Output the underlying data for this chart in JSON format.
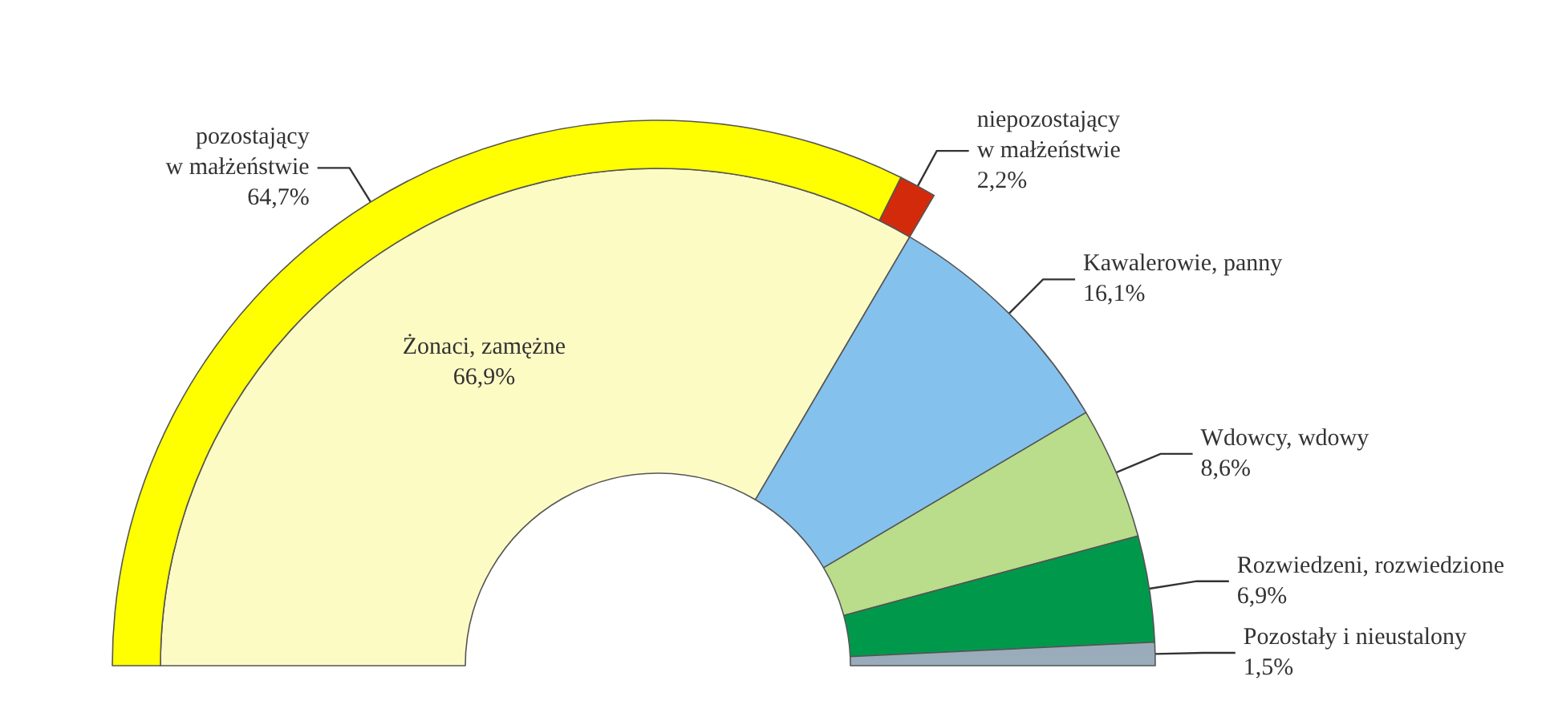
{
  "chart_data": [
    {
      "type": "donut",
      "categories": [
        "Żonaci, zamężne",
        "Kawalerowie, panny",
        "Wdowcy, wdowy",
        "Rozwiedzeni, rozwiedzione",
        "Pozostały i nieustalony"
      ],
      "values": [
        66.9,
        16.1,
        8.6,
        6.9,
        1.5
      ],
      "colors": [
        "#fdfbc4",
        "#85c1ed",
        "#b9dd8a",
        "#00994c",
        "#9aacbb"
      ],
      "value_labels": [
        "66,9%",
        "16,1%",
        "8,6%",
        "6,9%",
        "1,5%"
      ]
    },
    {
      "type": "donut",
      "categories": [
        "pozostający\nw małżeństwie",
        "niepozostający\nw małżeństwie"
      ],
      "values": [
        64.7,
        2.2
      ],
      "colors": [
        "#ffff00",
        "#d42a0c"
      ],
      "value_labels": [
        "64,7%",
        "2,2%"
      ]
    }
  ]
}
